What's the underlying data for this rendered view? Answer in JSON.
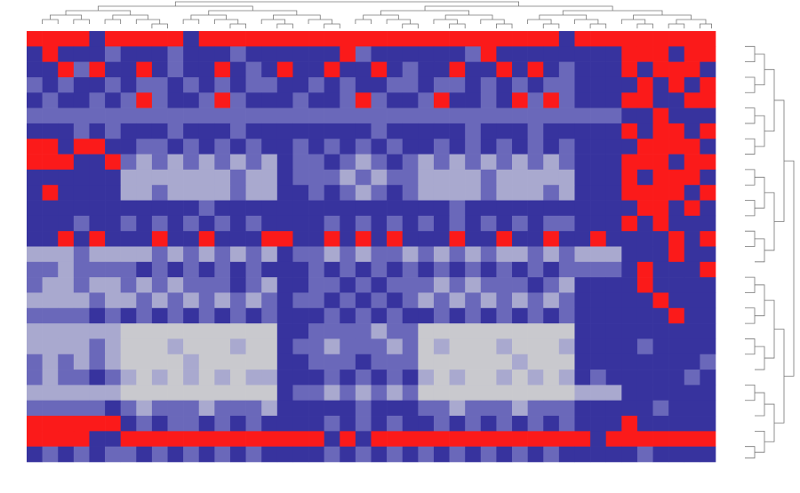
{
  "chart_data": {
    "type": "heatmap",
    "colors": [
      "#c9c9ce",
      "#a9a9cf",
      "#6a68ba",
      "#37339e",
      "#fb1a1a"
    ],
    "values": [
      [
        4,
        4,
        4,
        4,
        3,
        4,
        4,
        4,
        4,
        4,
        3,
        4,
        4,
        4,
        4,
        4,
        4,
        4,
        4,
        4,
        4,
        4,
        4,
        4,
        4,
        4,
        4,
        4,
        4,
        4,
        4,
        4,
        4,
        4,
        3,
        4,
        4,
        4,
        4,
        4,
        4,
        4,
        4,
        4
      ],
      [
        3,
        4,
        3,
        3,
        3,
        2,
        3,
        3,
        3,
        2,
        3,
        3,
        3,
        2,
        3,
        3,
        3,
        3,
        3,
        3,
        4,
        2,
        3,
        3,
        3,
        3,
        3,
        3,
        2,
        4,
        3,
        3,
        3,
        3,
        3,
        3,
        3,
        3,
        4,
        4,
        4,
        3,
        4,
        4
      ],
      [
        3,
        3,
        4,
        2,
        4,
        3,
        3,
        4,
        3,
        2,
        3,
        3,
        4,
        3,
        2,
        3,
        4,
        3,
        3,
        4,
        3,
        3,
        4,
        3,
        2,
        3,
        3,
        4,
        3,
        3,
        4,
        3,
        4,
        3,
        2,
        3,
        3,
        3,
        4,
        3,
        4,
        4,
        4,
        3
      ],
      [
        2,
        3,
        2,
        3,
        3,
        2,
        3,
        2,
        2,
        3,
        2,
        3,
        2,
        3,
        2,
        2,
        3,
        3,
        2,
        3,
        2,
        3,
        3,
        2,
        2,
        3,
        2,
        2,
        3,
        2,
        3,
        2,
        3,
        2,
        2,
        3,
        3,
        3,
        3,
        4,
        3,
        4,
        3,
        4
      ],
      [
        3,
        2,
        3,
        3,
        2,
        3,
        2,
        4,
        2,
        3,
        3,
        2,
        4,
        2,
        3,
        3,
        3,
        2,
        3,
        3,
        2,
        4,
        2,
        3,
        3,
        2,
        4,
        3,
        3,
        2,
        3,
        4,
        2,
        4,
        2,
        3,
        3,
        3,
        4,
        4,
        3,
        3,
        4,
        4
      ],
      [
        2,
        2,
        2,
        2,
        2,
        2,
        2,
        2,
        2,
        2,
        2,
        2,
        2,
        2,
        2,
        2,
        2,
        2,
        2,
        2,
        2,
        2,
        2,
        2,
        2,
        2,
        2,
        2,
        2,
        2,
        2,
        2,
        2,
        2,
        2,
        2,
        2,
        2,
        3,
        3,
        4,
        3,
        3,
        3
      ],
      [
        3,
        3,
        3,
        2,
        3,
        2,
        3,
        3,
        3,
        2,
        3,
        3,
        3,
        2,
        3,
        3,
        3,
        3,
        3,
        3,
        3,
        3,
        2,
        3,
        3,
        3,
        3,
        3,
        2,
        3,
        3,
        3,
        2,
        3,
        3,
        3,
        3,
        3,
        4,
        3,
        4,
        4,
        3,
        4
      ],
      [
        4,
        4,
        3,
        4,
        4,
        3,
        3,
        2,
        2,
        3,
        2,
        3,
        2,
        3,
        2,
        3,
        3,
        2,
        3,
        2,
        3,
        2,
        3,
        2,
        3,
        3,
        2,
        3,
        2,
        3,
        2,
        3,
        2,
        3,
        2,
        3,
        3,
        3,
        3,
        4,
        4,
        4,
        4,
        3
      ],
      [
        4,
        4,
        4,
        3,
        3,
        4,
        2,
        1,
        2,
        1,
        2,
        1,
        2,
        1,
        2,
        1,
        3,
        2,
        2,
        3,
        2,
        1,
        2,
        3,
        2,
        1,
        2,
        1,
        2,
        1,
        2,
        1,
        2,
        1,
        2,
        3,
        3,
        3,
        4,
        4,
        4,
        3,
        4,
        4
      ],
      [
        3,
        3,
        3,
        3,
        3,
        3,
        1,
        1,
        1,
        1,
        1,
        1,
        1,
        2,
        1,
        1,
        3,
        2,
        2,
        2,
        1,
        2,
        1,
        2,
        2,
        1,
        1,
        1,
        1,
        2,
        1,
        1,
        1,
        1,
        1,
        3,
        3,
        3,
        4,
        3,
        4,
        4,
        4,
        3
      ],
      [
        3,
        4,
        3,
        3,
        3,
        3,
        1,
        1,
        2,
        1,
        1,
        1,
        1,
        2,
        1,
        1,
        3,
        3,
        2,
        3,
        2,
        1,
        2,
        3,
        2,
        1,
        1,
        1,
        1,
        2,
        1,
        1,
        1,
        2,
        1,
        3,
        3,
        3,
        4,
        4,
        4,
        4,
        3,
        4
      ],
      [
        3,
        3,
        3,
        3,
        3,
        3,
        3,
        3,
        3,
        3,
        3,
        2,
        3,
        3,
        3,
        3,
        3,
        3,
        3,
        3,
        3,
        3,
        3,
        3,
        3,
        3,
        3,
        2,
        3,
        3,
        3,
        3,
        3,
        3,
        3,
        3,
        3,
        3,
        3,
        4,
        4,
        3,
        4,
        3
      ],
      [
        3,
        3,
        3,
        2,
        3,
        3,
        2,
        3,
        2,
        3,
        2,
        3,
        2,
        3,
        2,
        3,
        3,
        3,
        3,
        2,
        3,
        2,
        3,
        2,
        3,
        2,
        3,
        2,
        3,
        2,
        3,
        2,
        3,
        2,
        2,
        3,
        3,
        3,
        4,
        3,
        4,
        3,
        3,
        3
      ],
      [
        3,
        3,
        4,
        3,
        4,
        3,
        3,
        3,
        4,
        3,
        3,
        4,
        3,
        3,
        3,
        4,
        4,
        3,
        3,
        4,
        3,
        4,
        3,
        4,
        3,
        3,
        3,
        4,
        3,
        3,
        4,
        3,
        3,
        4,
        3,
        3,
        4,
        3,
        3,
        3,
        3,
        4,
        3,
        4
      ],
      [
        1,
        1,
        1,
        2,
        1,
        1,
        1,
        1,
        2,
        1,
        2,
        1,
        2,
        1,
        2,
        1,
        3,
        2,
        2,
        1,
        2,
        1,
        2,
        2,
        1,
        2,
        1,
        2,
        1,
        2,
        1,
        1,
        2,
        1,
        2,
        1,
        1,
        1,
        3,
        3,
        3,
        4,
        3,
        3
      ],
      [
        2,
        2,
        1,
        2,
        2,
        2,
        2,
        3,
        2,
        3,
        2,
        3,
        2,
        3,
        2,
        3,
        3,
        3,
        2,
        3,
        2,
        3,
        2,
        3,
        2,
        3,
        2,
        3,
        2,
        3,
        2,
        3,
        2,
        3,
        2,
        2,
        2,
        2,
        3,
        4,
        3,
        3,
        3,
        4
      ],
      [
        2,
        1,
        1,
        2,
        1,
        1,
        2,
        1,
        2,
        1,
        2,
        2,
        2,
        3,
        2,
        1,
        3,
        3,
        2,
        2,
        3,
        2,
        3,
        2,
        2,
        2,
        1,
        2,
        1,
        2,
        2,
        2,
        3,
        2,
        1,
        3,
        3,
        3,
        3,
        4,
        3,
        3,
        3,
        3
      ],
      [
        1,
        1,
        1,
        1,
        2,
        1,
        1,
        2,
        1,
        2,
        1,
        2,
        1,
        2,
        1,
        2,
        3,
        2,
        2,
        3,
        2,
        3,
        2,
        3,
        2,
        1,
        2,
        1,
        2,
        1,
        2,
        1,
        2,
        1,
        2,
        3,
        3,
        3,
        3,
        3,
        4,
        3,
        3,
        3
      ],
      [
        2,
        2,
        2,
        2,
        3,
        2,
        3,
        2,
        3,
        2,
        3,
        2,
        3,
        2,
        3,
        2,
        3,
        3,
        3,
        2,
        3,
        2,
        3,
        2,
        3,
        3,
        2,
        3,
        2,
        3,
        2,
        3,
        2,
        3,
        2,
        3,
        3,
        3,
        3,
        3,
        3,
        4,
        3,
        3
      ],
      [
        1,
        1,
        1,
        1,
        1,
        1,
        0,
        0,
        0,
        0,
        0,
        0,
        0,
        0,
        0,
        0,
        3,
        3,
        2,
        2,
        2,
        2,
        1,
        2,
        2,
        0,
        0,
        0,
        0,
        0,
        0,
        0,
        0,
        0,
        0,
        3,
        3,
        3,
        3,
        3,
        3,
        3,
        3,
        3
      ],
      [
        1,
        1,
        1,
        1,
        2,
        1,
        0,
        0,
        0,
        1,
        0,
        0,
        0,
        1,
        0,
        0,
        3,
        2,
        2,
        1,
        2,
        2,
        2,
        1,
        2,
        0,
        1,
        0,
        0,
        0,
        1,
        0,
        0,
        0,
        1,
        3,
        3,
        3,
        3,
        2,
        3,
        3,
        3,
        3
      ],
      [
        2,
        1,
        2,
        1,
        2,
        1,
        0,
        0,
        0,
        0,
        1,
        0,
        0,
        0,
        0,
        0,
        3,
        3,
        2,
        2,
        2,
        3,
        2,
        2,
        2,
        0,
        0,
        0,
        0,
        0,
        0,
        1,
        0,
        0,
        0,
        3,
        3,
        3,
        3,
        3,
        3,
        3,
        3,
        2
      ],
      [
        2,
        1,
        2,
        2,
        3,
        2,
        1,
        0,
        1,
        0,
        1,
        0,
        1,
        0,
        1,
        1,
        3,
        3,
        3,
        2,
        3,
        2,
        3,
        2,
        3,
        1,
        0,
        1,
        0,
        0,
        1,
        0,
        1,
        0,
        1,
        3,
        2,
        3,
        3,
        3,
        3,
        3,
        2,
        3
      ],
      [
        1,
        1,
        1,
        1,
        1,
        1,
        0,
        0,
        0,
        0,
        0,
        0,
        0,
        0,
        0,
        0,
        3,
        2,
        2,
        1,
        2,
        1,
        2,
        1,
        2,
        0,
        0,
        0,
        0,
        0,
        0,
        0,
        0,
        0,
        0,
        1,
        1,
        1,
        3,
        3,
        3,
        3,
        3,
        3
      ],
      [
        2,
        2,
        2,
        2,
        2,
        3,
        2,
        1,
        2,
        2,
        2,
        1,
        2,
        2,
        2,
        1,
        3,
        3,
        3,
        3,
        3,
        2,
        3,
        3,
        3,
        2,
        2,
        1,
        2,
        2,
        2,
        1,
        2,
        2,
        2,
        3,
        3,
        3,
        3,
        3,
        2,
        3,
        3,
        3
      ],
      [
        4,
        4,
        4,
        4,
        4,
        4,
        3,
        2,
        3,
        2,
        2,
        3,
        2,
        3,
        2,
        3,
        3,
        3,
        3,
        2,
        3,
        2,
        3,
        2,
        3,
        3,
        2,
        3,
        2,
        3,
        2,
        3,
        2,
        3,
        2,
        3,
        3,
        3,
        4,
        3,
        3,
        3,
        3,
        3
      ],
      [
        4,
        4,
        4,
        4,
        3,
        3,
        4,
        4,
        4,
        4,
        4,
        4,
        4,
        4,
        4,
        4,
        4,
        4,
        4,
        3,
        4,
        3,
        4,
        4,
        4,
        4,
        4,
        4,
        4,
        4,
        4,
        4,
        4,
        4,
        4,
        4,
        3,
        4,
        4,
        4,
        4,
        4,
        4,
        4
      ],
      [
        3,
        2,
        3,
        2,
        3,
        2,
        2,
        3,
        2,
        3,
        2,
        3,
        2,
        3,
        2,
        3,
        3,
        3,
        3,
        2,
        3,
        2,
        3,
        2,
        3,
        2,
        3,
        2,
        3,
        2,
        3,
        2,
        3,
        2,
        3,
        3,
        3,
        3,
        3,
        2,
        3,
        3,
        3,
        3
      ]
    ]
  }
}
